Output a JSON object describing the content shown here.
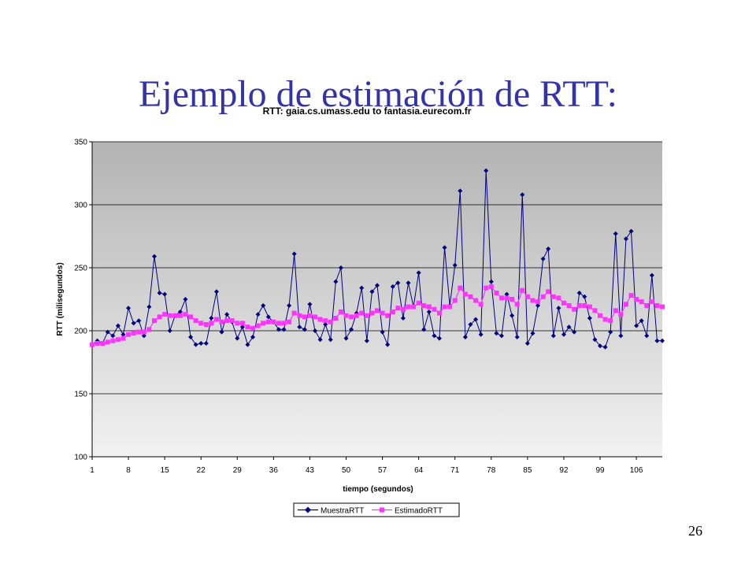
{
  "slide": {
    "title": "Ejemplo de estimación de RTT:",
    "page_number": "26"
  },
  "chart_data": {
    "type": "line",
    "title": "RTT: gaia.cs.umass.edu to fantasia.eurecom.fr",
    "xlabel": "tiempo (segundos)",
    "ylabel": "RTT (milisegundos)",
    "ylim": [
      100,
      350
    ],
    "yticks": [
      100,
      150,
      200,
      250,
      300,
      350
    ],
    "xticks": [
      1,
      8,
      15,
      22,
      29,
      36,
      43,
      50,
      57,
      64,
      71,
      78,
      85,
      92,
      99,
      106
    ],
    "xlim": [
      1,
      111
    ],
    "grid": "horizontal",
    "legend_position": "bottom",
    "x": [
      1,
      2,
      3,
      4,
      5,
      6,
      7,
      8,
      9,
      10,
      11,
      12,
      13,
      14,
      15,
      16,
      17,
      18,
      19,
      20,
      21,
      22,
      23,
      24,
      25,
      26,
      27,
      28,
      29,
      30,
      31,
      32,
      33,
      34,
      35,
      36,
      37,
      38,
      39,
      40,
      41,
      42,
      43,
      44,
      45,
      46,
      47,
      48,
      49,
      50,
      51,
      52,
      53,
      54,
      55,
      56,
      57,
      58,
      59,
      60,
      61,
      62,
      63,
      64,
      65,
      66,
      67,
      68,
      69,
      70,
      71,
      72,
      73,
      74,
      75,
      76,
      77,
      78,
      79,
      80,
      81,
      82,
      83,
      84,
      85,
      86,
      87,
      88,
      89,
      90,
      91,
      92,
      93,
      94,
      95,
      96,
      97,
      98,
      99,
      100,
      101,
      102,
      103,
      104,
      105,
      106,
      107,
      108,
      109,
      110,
      111
    ],
    "series": [
      {
        "name": "MuestraRTT",
        "color": "#000080",
        "marker": "diamond",
        "values": [
          189,
          192,
          190,
          199,
          196,
          204,
          197,
          218,
          206,
          208,
          196,
          219,
          259,
          230,
          229,
          200,
          212,
          215,
          225,
          195,
          189,
          190,
          190,
          210,
          231,
          199,
          213,
          207,
          194,
          203,
          189,
          195,
          213,
          220,
          211,
          207,
          201,
          201,
          220,
          261,
          203,
          201,
          221,
          200,
          193,
          205,
          193,
          239,
          250,
          194,
          201,
          214,
          234,
          192,
          231,
          236,
          199,
          189,
          235,
          238,
          210,
          238,
          219,
          246,
          201,
          215,
          196,
          194,
          266,
          220,
          252,
          311,
          195,
          205,
          209,
          197,
          327,
          239,
          198,
          196,
          229,
          212,
          195,
          308,
          190,
          198,
          220,
          257,
          265,
          196,
          218,
          197,
          203,
          199,
          230,
          227,
          210,
          193,
          188,
          187,
          199,
          277,
          196,
          273,
          279,
          204,
          208,
          196,
          244,
          192,
          192
        ]
      },
      {
        "name": "EstimadoRTT",
        "color": "#ff33ff",
        "marker": "square",
        "values": [
          189,
          190,
          190,
          191,
          192,
          193,
          194,
          197,
          198,
          199,
          199,
          201,
          208,
          211,
          213,
          212,
          212,
          212,
          213,
          211,
          208,
          206,
          205,
          206,
          209,
          207,
          208,
          208,
          206,
          206,
          203,
          202,
          204,
          206,
          207,
          207,
          206,
          206,
          207,
          214,
          212,
          211,
          212,
          211,
          209,
          208,
          207,
          210,
          215,
          212,
          211,
          212,
          214,
          212,
          214,
          216,
          214,
          212,
          215,
          218,
          217,
          219,
          219,
          222,
          220,
          219,
          217,
          214,
          219,
          219,
          224,
          234,
          229,
          227,
          224,
          221,
          234,
          235,
          230,
          226,
          226,
          225,
          221,
          232,
          227,
          224,
          223,
          227,
          231,
          227,
          226,
          222,
          220,
          217,
          220,
          220,
          219,
          216,
          212,
          209,
          208,
          216,
          213,
          221,
          228,
          225,
          223,
          220,
          223,
          220,
          219
        ]
      }
    ]
  }
}
